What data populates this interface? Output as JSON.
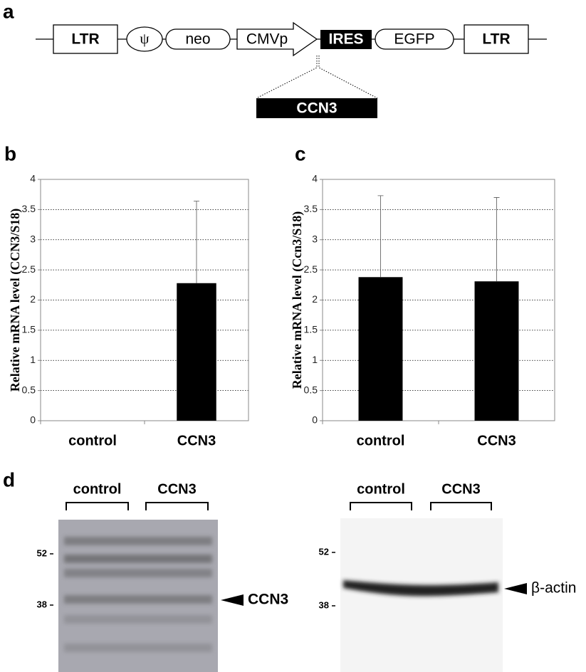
{
  "diagram": {
    "label": "a",
    "elements": [
      "LTR",
      "ψ",
      "neo",
      "CMVp",
      "IRES",
      "EGFP",
      "LTR"
    ],
    "insert": "CCN3"
  },
  "chart_data": [
    {
      "type": "bar",
      "panel": "b",
      "y_label": "Relative mRNA level (CCN3/S18)",
      "categories": [
        "control",
        "CCN3"
      ],
      "values": [
        0,
        2.28
      ],
      "errors": [
        null,
        1.36
      ],
      "color": "#000000",
      "ylim": [
        0,
        4
      ],
      "yticks": [
        0,
        0.5,
        1,
        1.5,
        2,
        2.5,
        3,
        3.5,
        4
      ],
      "grid": true
    },
    {
      "type": "bar",
      "panel": "c",
      "y_label": "Relative mRNA level (Ccn3/S18)",
      "categories": [
        "control",
        "CCN3"
      ],
      "values": [
        2.38,
        2.31
      ],
      "errors": [
        1.35,
        1.39
      ],
      "color": "#000000",
      "ylim": [
        0,
        4
      ],
      "yticks": [
        0,
        0.5,
        1,
        1.5,
        2,
        2.5,
        3,
        3.5,
        4
      ],
      "grid": true
    }
  ],
  "blots": {
    "label": "d",
    "panels": [
      {
        "groups": [
          "control",
          "CCN3"
        ],
        "markers": [
          "52",
          "38"
        ],
        "band": "CCN3"
      },
      {
        "groups": [
          "control",
          "CCN3"
        ],
        "markers": [
          "52",
          "38"
        ],
        "band": "β-actin"
      }
    ]
  }
}
